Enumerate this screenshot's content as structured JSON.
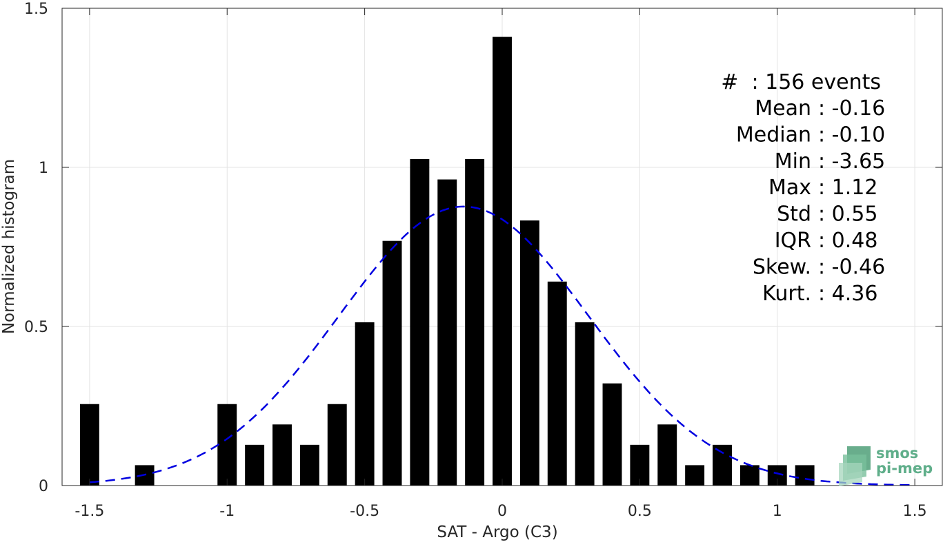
{
  "chart_data": {
    "type": "bar",
    "xlabel": "SAT - Argo (C3)",
    "ylabel": "Normalized histogram",
    "xlim": [
      -1.6,
      1.6
    ],
    "ylim": [
      0,
      1.5
    ],
    "grid": true,
    "x_ticks": [
      {
        "value": -1.5,
        "label": "-1.5"
      },
      {
        "value": -1,
        "label": "-1"
      },
      {
        "value": -0.5,
        "label": "-0.5"
      },
      {
        "value": 0,
        "label": "0"
      },
      {
        "value": 0.5,
        "label": "0.5"
      },
      {
        "value": 1,
        "label": "1"
      },
      {
        "value": 1.5,
        "label": "1.5"
      }
    ],
    "y_ticks": [
      {
        "value": 0,
        "label": "0"
      },
      {
        "value": 0.5,
        "label": "0.5"
      },
      {
        "value": 1,
        "label": "1"
      },
      {
        "value": 1.5,
        "label": "1.5"
      }
    ],
    "bin_width": 0.1,
    "bar_color": "#000000",
    "bins": [
      {
        "x": -1.5,
        "value": 0.256
      },
      {
        "x": -1.3,
        "value": 0.064
      },
      {
        "x": -1.0,
        "value": 0.256
      },
      {
        "x": -0.9,
        "value": 0.128
      },
      {
        "x": -0.8,
        "value": 0.192
      },
      {
        "x": -0.7,
        "value": 0.128
      },
      {
        "x": -0.6,
        "value": 0.256
      },
      {
        "x": -0.5,
        "value": 0.513
      },
      {
        "x": -0.4,
        "value": 0.769
      },
      {
        "x": -0.3,
        "value": 1.026
      },
      {
        "x": -0.2,
        "value": 0.962
      },
      {
        "x": -0.1,
        "value": 1.026
      },
      {
        "x": 0.0,
        "value": 1.41
      },
      {
        "x": 0.1,
        "value": 0.833
      },
      {
        "x": 0.2,
        "value": 0.641
      },
      {
        "x": 0.3,
        "value": 0.513
      },
      {
        "x": 0.4,
        "value": 0.321
      },
      {
        "x": 0.5,
        "value": 0.128
      },
      {
        "x": 0.6,
        "value": 0.192
      },
      {
        "x": 0.7,
        "value": 0.064
      },
      {
        "x": 0.8,
        "value": 0.128
      },
      {
        "x": 0.9,
        "value": 0.064
      },
      {
        "x": 1.0,
        "value": 0.064
      },
      {
        "x": 1.1,
        "value": 0.064
      }
    ],
    "fit_curve": {
      "style": "dashed",
      "color": "#0000e0",
      "mean": -0.14,
      "std": 0.455,
      "x_range": [
        -1.5,
        1.5
      ]
    },
    "annotation": {
      "events_line": "#  : 156 events",
      "stats": [
        {
          "label": "Mean",
          "value": "-0.16"
        },
        {
          "label": "Median",
          "value": "-0.10"
        },
        {
          "label": "Min",
          "value": "-3.65"
        },
        {
          "label": "Max",
          "value": "1.12"
        },
        {
          "label": "Std",
          "value": "0.55"
        },
        {
          "label": "IQR",
          "value": "0.48"
        },
        {
          "label": "Skew.",
          "value": "-0.46"
        },
        {
          "label": "Kurt.",
          "value": "4.36"
        }
      ]
    }
  },
  "logo": {
    "line1": "smos",
    "line2": "pi-mep",
    "color": "#5fae8a"
  }
}
